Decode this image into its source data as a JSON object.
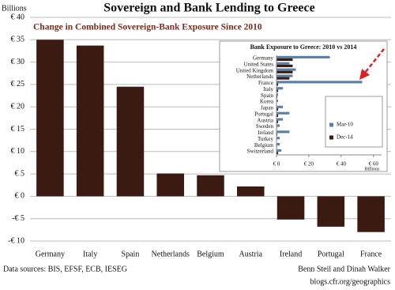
{
  "chart_data": [
    {
      "type": "bar",
      "title": "Sovereign and Bank Lending to Greece",
      "subtitle": "Change in Combined Sovereign-Bank Exposure Since 2010",
      "ylabel": "Billions",
      "categories": [
        "Germany",
        "Italy",
        "Spain",
        "Netherlands",
        "Belgium",
        "Austria",
        "Ireland",
        "Portugal",
        "France"
      ],
      "values": [
        35,
        33.7,
        24.5,
        5.1,
        4.7,
        2.2,
        -5.2,
        -6.8,
        -8
      ],
      "color": "#3b1a12",
      "ylim": [
        -10,
        40
      ],
      "yticks": [
        {
          "value": 40,
          "label": "€ 40"
        },
        {
          "value": 35,
          "label": "€ 35"
        },
        {
          "value": 30,
          "label": "€ 30"
        },
        {
          "value": 25,
          "label": "€ 25"
        },
        {
          "value": 20,
          "label": "€ 20"
        },
        {
          "value": 15,
          "label": "€ 15"
        },
        {
          "value": 10,
          "label": "€ 10"
        },
        {
          "value": 5,
          "label": "€ 5"
        },
        {
          "value": 0,
          "label": "€ 0"
        },
        {
          "value": -5,
          "label": "-€ 5"
        },
        {
          "value": -10,
          "label": "-€ 10"
        }
      ],
      "grid": true,
      "annotations": [
        "Data sources: BIS, EFSF, ECB, IESEG",
        "Benn Steil and Dinah Walker",
        "blogs.cfr.org/geographics"
      ]
    },
    {
      "type": "barh",
      "title": "Bank Exposure to Greece: 2010 vs 2014",
      "xlabel": "Billions",
      "categories": [
        "Germany",
        "United States",
        "United Kingdom",
        "Netherlands",
        "France",
        "Italy",
        "Spain",
        "Korea",
        "Japan",
        "Portugal",
        "Austria",
        "Sweden",
        "Ireland",
        "Turkey",
        "Belgium",
        "Switzerland"
      ],
      "series": [
        {
          "name": "Mar-10",
          "color": "#5b80a8",
          "values": [
            33,
            8,
            12,
            10,
            53,
            4,
            1,
            1,
            4,
            8,
            4,
            2,
            8,
            2,
            2,
            3
          ]
        },
        {
          "name": "Dec-14",
          "color": "#3b1a12",
          "values": [
            10,
            10,
            10,
            8,
            1,
            1,
            0.5,
            0,
            1,
            1,
            1,
            0.3,
            0.5,
            0.2,
            0.3,
            1
          ]
        }
      ],
      "xlim": [
        0,
        65
      ],
      "xticks": [
        {
          "value": 0,
          "label": "€ 0"
        },
        {
          "value": 20,
          "label": "€ 20"
        },
        {
          "value": 40,
          "label": "€ 40"
        },
        {
          "value": 60,
          "label": "€ 60"
        }
      ],
      "legend": "lower right"
    }
  ]
}
